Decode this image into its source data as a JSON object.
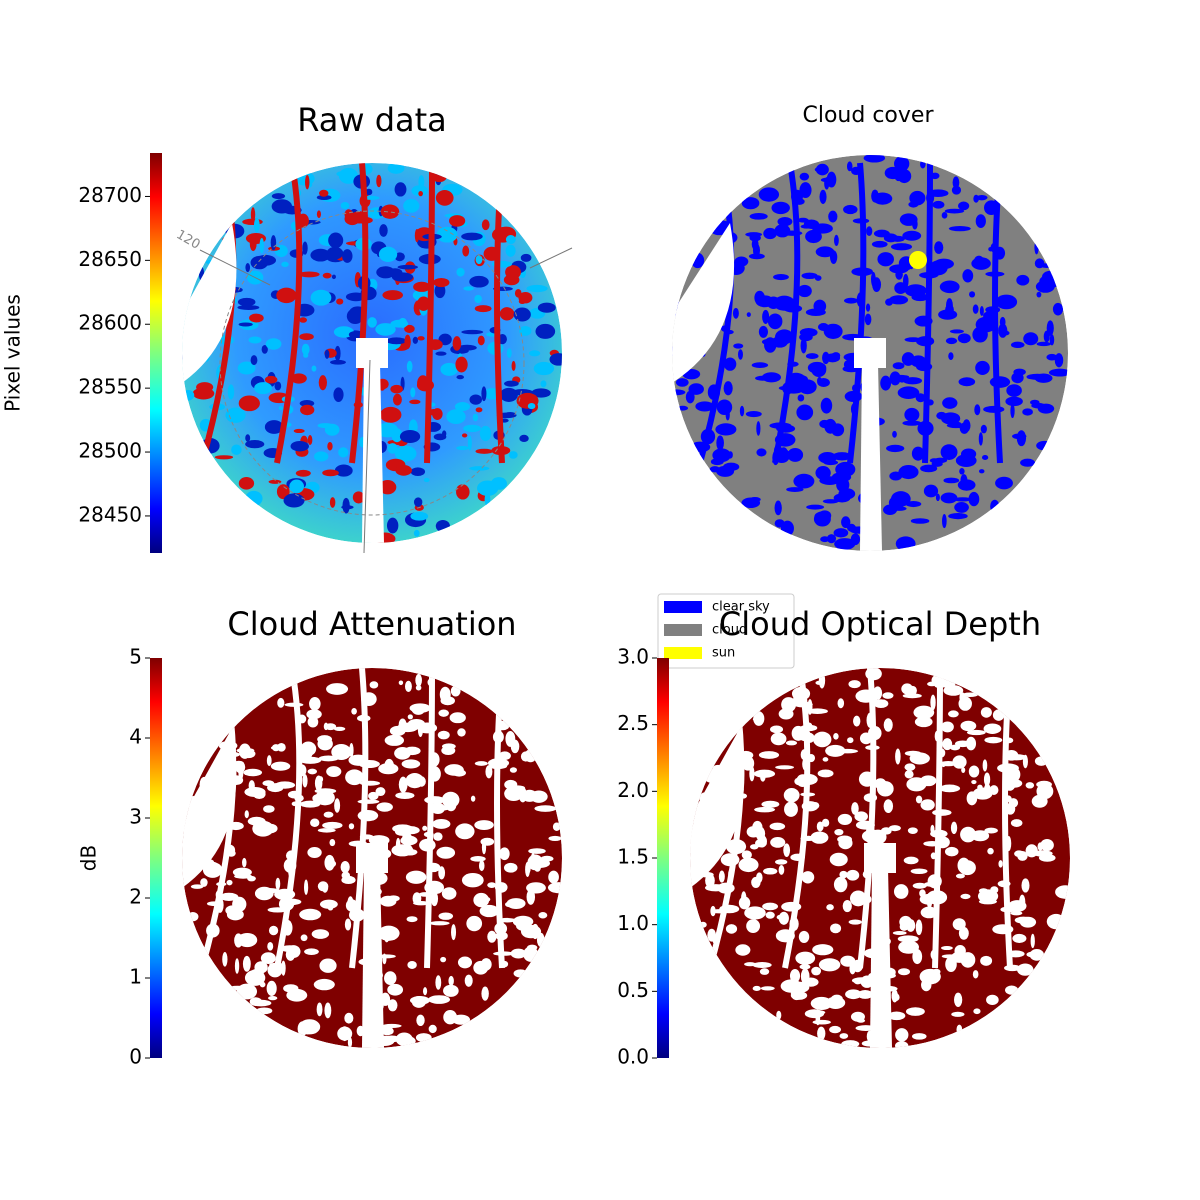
{
  "chart_data": [
    {
      "type": "image",
      "title": "Raw data",
      "colormap": "jet",
      "colorbar": {
        "label": "Pixel values",
        "lim": [
          28421,
          28734
        ],
        "ticks": [
          28450,
          28500,
          28550,
          28600,
          28650,
          28700
        ]
      },
      "annotations": [
        "120"
      ]
    },
    {
      "type": "image",
      "title": "Cloud cover",
      "legend": [
        {
          "name": "clear sky",
          "color": "#0000ff"
        },
        {
          "name": "cloud",
          "color": "#808080"
        },
        {
          "name": "sun",
          "color": "#ffff00"
        }
      ]
    },
    {
      "type": "image",
      "title": "Cloud Attenuation",
      "colormap": "jet",
      "colorbar": {
        "label": "dB",
        "lim": [
          0,
          5
        ],
        "ticks": [
          0,
          1,
          2,
          3,
          4,
          5
        ]
      }
    },
    {
      "type": "image",
      "title": "Cloud Optical Depth",
      "colormap": "jet",
      "colorbar": {
        "lim": [
          0,
          3
        ],
        "ticks": [
          {
            "value": 0,
            "label": "0.0"
          },
          {
            "value": 0.5,
            "label": "0.5"
          },
          {
            "value": 1,
            "label": "1.0"
          },
          {
            "value": 1.5,
            "label": "1.5"
          },
          {
            "value": 2,
            "label": "2.0"
          },
          {
            "value": 2.5,
            "label": "2.5"
          },
          {
            "value": 3,
            "label": "3.0"
          }
        ]
      }
    }
  ]
}
